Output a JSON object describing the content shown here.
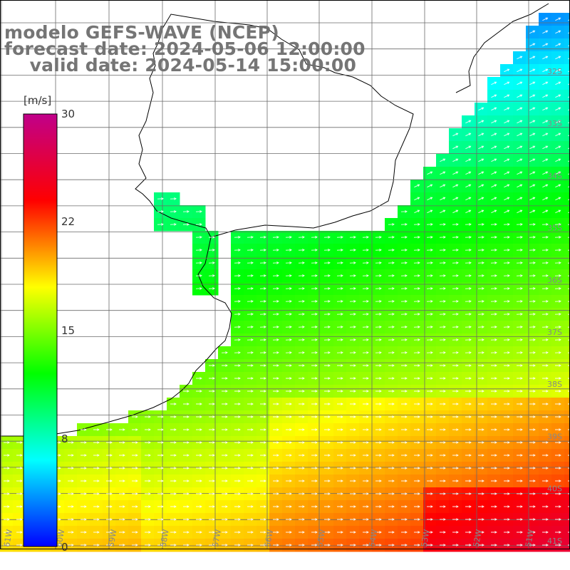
{
  "header": {
    "line1": "modelo GEFS-WAVE (NCEP)",
    "line2": "forecast date: 2024-05-06 12:00:00",
    "line3": "    valid date: 2024-05-14 15:00:00"
  },
  "colorbar": {
    "unit": "[m/s]",
    "min": 0,
    "max": 30,
    "ticks": [
      "0",
      "8",
      "15",
      "22",
      "30"
    ],
    "tick_values": [
      0,
      8,
      15,
      22,
      30
    ],
    "colors": [
      "#0000ff",
      "#00ffff",
      "#00ff00",
      "#ffff00",
      "#ff0000",
      "#c0008a"
    ]
  },
  "axes": {
    "lat_labels": [
      "32S",
      "33S",
      "34S",
      "35S",
      "36S",
      "37S",
      "38S",
      "39S",
      "40S",
      "41S"
    ],
    "lat_values": [
      -32,
      -33,
      -34,
      -35,
      -36,
      -37,
      -38,
      -39,
      -40,
      -41
    ],
    "lon_labels": [
      "61W",
      "60W",
      "59W",
      "58W",
      "57W",
      "56W",
      "55W",
      "54W",
      "53W",
      "52W",
      "51W"
    ],
    "lon_values": [
      -61,
      -60,
      -59,
      -58,
      -57,
      -56,
      -55,
      -54,
      -53,
      -52,
      -51
    ]
  },
  "map": {
    "variable": "wind speed",
    "land_color": "#ffffff",
    "grid_color": "#606060",
    "vector_color": "#ffffff"
  }
}
